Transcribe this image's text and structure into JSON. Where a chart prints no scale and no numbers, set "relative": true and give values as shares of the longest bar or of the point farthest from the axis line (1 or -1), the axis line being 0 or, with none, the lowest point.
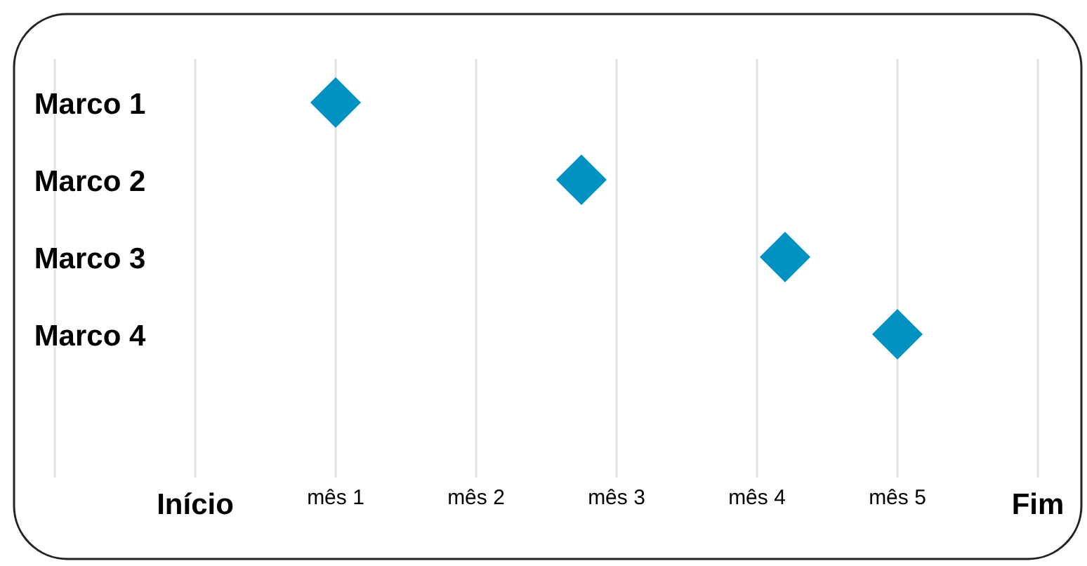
{
  "chart_data": {
    "type": "scatter",
    "orientation": "horizontal",
    "relative": true,
    "categories": [
      "Marco 1",
      "Marco 2",
      "Marco 3",
      "Marco 4"
    ],
    "series": [
      {
        "color": "#0092c0",
        "values": [
          0.2,
          0.55,
          0.84,
          1
        ]
      }
    ],
    "ref_lines": [
      {
        "axis": "x",
        "value": -0.2,
        "label": null,
        "color": "#e3e3e3"
      },
      {
        "axis": "x",
        "value": 0,
        "label": "Início",
        "color": "#e3e3e3"
      },
      {
        "axis": "x",
        "value": 0.2,
        "label": "mês 1",
        "color": "#e3e3e3"
      },
      {
        "axis": "x",
        "value": 0.4,
        "label": "mês 2",
        "color": "#e3e3e3"
      },
      {
        "axis": "x",
        "value": 0.6,
        "label": "mês 3",
        "color": "#e3e3e3"
      },
      {
        "axis": "x",
        "value": 0.8,
        "label": "mês 4",
        "color": "#e3e3e3"
      },
      {
        "axis": "x",
        "value": 1,
        "label": "mês 5",
        "color": "#e3e3e3"
      },
      {
        "axis": "x",
        "value": 1.2,
        "label": "Fim",
        "color": "#e3e3e3"
      }
    ],
    "marker": "diamond"
  }
}
